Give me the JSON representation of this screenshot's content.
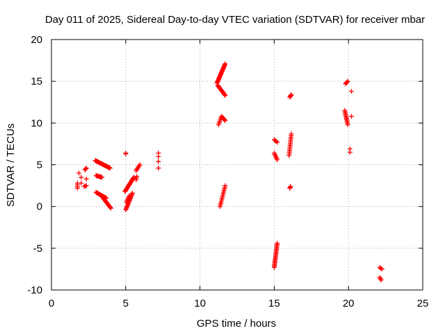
{
  "chart_data": {
    "type": "scatter",
    "title": "Day 011 of 2025, Sidereal Day-to-day VTEC variation (SDTVAR) for receiver mbar",
    "xlabel": "GPS time / hours",
    "ylabel": "SDTVAR / TECUs",
    "xlim": [
      0,
      25
    ],
    "ylim": [
      -10,
      20
    ],
    "x_ticks": [
      0,
      5,
      10,
      15,
      20,
      25
    ],
    "y_ticks": [
      -10,
      -5,
      0,
      5,
      10,
      15,
      20
    ],
    "x_tick_labels": [
      "0",
      "5",
      "10",
      "15",
      "20",
      "25"
    ],
    "y_tick_labels": [
      "-10",
      "-5",
      "0",
      "5",
      "10",
      "15",
      "20"
    ],
    "grid": true,
    "marker": "+",
    "colors": {
      "points": "#ff0000",
      "grid": "#a0a0a0",
      "axes": "#000000"
    },
    "tracks": [
      {
        "x0": 1.75,
        "y0": 2.2,
        "x1": 1.75,
        "y1": 2.8,
        "n": 4
      },
      {
        "x0": 1.85,
        "y0": 4.0,
        "x1": 1.85,
        "y1": 4.0,
        "n": 1
      },
      {
        "x0": 2.0,
        "y0": 3.5,
        "x1": 2.0,
        "y1": 3.5,
        "n": 1
      },
      {
        "x0": 2.0,
        "y0": 2.8,
        "x1": 2.0,
        "y1": 2.8,
        "n": 1
      },
      {
        "x0": 2.2,
        "y0": 2.4,
        "x1": 2.35,
        "y1": 2.5,
        "n": 3
      },
      {
        "x0": 2.25,
        "y0": 4.4,
        "x1": 2.35,
        "y1": 4.6,
        "n": 3
      },
      {
        "x0": 2.35,
        "y0": 3.3,
        "x1": 2.35,
        "y1": 3.3,
        "n": 1
      },
      {
        "x0": 2.95,
        "y0": 5.5,
        "x1": 3.95,
        "y1": 4.6,
        "n": 22
      },
      {
        "x0": 3.0,
        "y0": 3.7,
        "x1": 3.4,
        "y1": 3.5,
        "n": 8
      },
      {
        "x0": 3.0,
        "y0": 1.7,
        "x1": 3.7,
        "y1": 1.0,
        "n": 14
      },
      {
        "x0": 3.4,
        "y0": 1.2,
        "x1": 4.0,
        "y1": -0.2,
        "n": 14
      },
      {
        "x0": 5.0,
        "y0": 6.3,
        "x1": 5.0,
        "y1": 6.4,
        "n": 2
      },
      {
        "x0": 4.95,
        "y0": 1.8,
        "x1": 5.55,
        "y1": 3.5,
        "n": 18
      },
      {
        "x0": 5.0,
        "y0": -0.4,
        "x1": 5.45,
        "y1": 1.6,
        "n": 16
      },
      {
        "x0": 5.05,
        "y0": 0.5,
        "x1": 5.25,
        "y1": 1.3,
        "n": 6
      },
      {
        "x0": 5.7,
        "y0": 3.2,
        "x1": 5.75,
        "y1": 3.6,
        "n": 3
      },
      {
        "x0": 5.7,
        "y0": 4.3,
        "x1": 5.95,
        "y1": 5.0,
        "n": 6
      },
      {
        "x0": 7.2,
        "y0": 6.0,
        "x1": 7.2,
        "y1": 6.4,
        "n": 2
      },
      {
        "x0": 7.2,
        "y0": 5.4,
        "x1": 7.2,
        "y1": 5.4,
        "n": 1
      },
      {
        "x0": 7.2,
        "y0": 4.6,
        "x1": 7.2,
        "y1": 4.6,
        "n": 1
      },
      {
        "x0": 11.15,
        "y0": 14.8,
        "x1": 11.7,
        "y1": 17.1,
        "n": 22
      },
      {
        "x0": 11.2,
        "y0": 14.5,
        "x1": 11.7,
        "y1": 13.3,
        "n": 14
      },
      {
        "x0": 11.25,
        "y0": 9.8,
        "x1": 11.45,
        "y1": 10.8,
        "n": 6
      },
      {
        "x0": 11.5,
        "y0": 10.7,
        "x1": 11.7,
        "y1": 10.3,
        "n": 5
      },
      {
        "x0": 11.35,
        "y0": 0.0,
        "x1": 11.7,
        "y1": 2.5,
        "n": 14
      },
      {
        "x0": 15.0,
        "y0": 8.0,
        "x1": 15.2,
        "y1": 7.7,
        "n": 4
      },
      {
        "x0": 15.0,
        "y0": 6.4,
        "x1": 15.2,
        "y1": 5.6,
        "n": 6
      },
      {
        "x0": 15.0,
        "y0": -7.3,
        "x1": 15.2,
        "y1": -4.4,
        "n": 20
      },
      {
        "x0": 16.0,
        "y0": 6.1,
        "x1": 16.15,
        "y1": 8.7,
        "n": 14
      },
      {
        "x0": 16.05,
        "y0": 13.1,
        "x1": 16.15,
        "y1": 13.4,
        "n": 4
      },
      {
        "x0": 16.05,
        "y0": 2.2,
        "x1": 16.1,
        "y1": 2.4,
        "n": 3
      },
      {
        "x0": 19.8,
        "y0": 14.7,
        "x1": 19.95,
        "y1": 15.0,
        "n": 4
      },
      {
        "x0": 19.75,
        "y0": 11.5,
        "x1": 19.95,
        "y1": 9.8,
        "n": 12
      },
      {
        "x0": 20.2,
        "y0": 13.8,
        "x1": 20.2,
        "y1": 13.8,
        "n": 1
      },
      {
        "x0": 20.2,
        "y0": 10.8,
        "x1": 20.2,
        "y1": 10.8,
        "n": 1
      },
      {
        "x0": 20.1,
        "y0": 6.5,
        "x1": 20.1,
        "y1": 6.9,
        "n": 2
      },
      {
        "x0": 22.1,
        "y0": -7.3,
        "x1": 22.25,
        "y1": -7.5,
        "n": 3
      },
      {
        "x0": 22.1,
        "y0": -8.5,
        "x1": 22.2,
        "y1": -8.8,
        "n": 3
      }
    ]
  }
}
